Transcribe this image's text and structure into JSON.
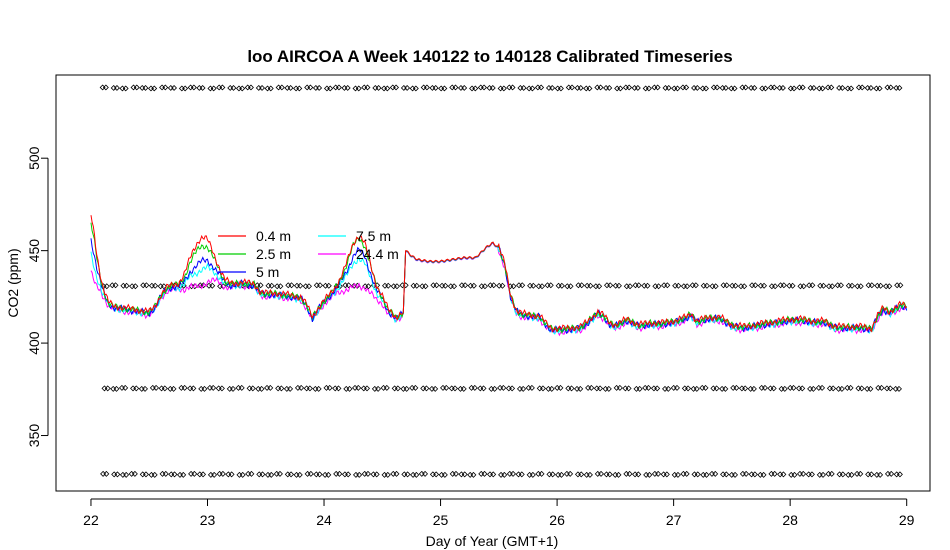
{
  "chart_data": {
    "type": "line",
    "title": "loo AIRCOA A  Week 140122 to 140128  Calibrated Timeseries",
    "xlabel": "Day of Year (GMT+1)",
    "ylabel": "CO2 (ppm)",
    "xlim": [
      21.7,
      29.2
    ],
    "ylim": [
      320,
      545
    ],
    "x_ticks": [
      22,
      23,
      24,
      25,
      26,
      27,
      28,
      29
    ],
    "y_ticks": [
      350,
      400,
      450,
      500
    ],
    "legend": {
      "placement": "center-left",
      "entries": [
        {
          "name": "0.4 m",
          "color": "#ff0000"
        },
        {
          "name": "2.5 m",
          "color": "#00cd00"
        },
        {
          "name": "5 m",
          "color": "#0000ff"
        },
        {
          "name": "7.5 m",
          "color": "#00ffff"
        },
        {
          "name": "24.4 m",
          "color": "#ff00ff"
        }
      ]
    },
    "base_profile": [
      [
        22.0,
        452
      ],
      [
        22.05,
        438
      ],
      [
        22.1,
        428
      ],
      [
        22.15,
        421
      ],
      [
        22.2,
        419
      ],
      [
        22.3,
        418
      ],
      [
        22.4,
        417
      ],
      [
        22.5,
        416
      ],
      [
        22.55,
        419
      ],
      [
        22.6,
        425
      ],
      [
        22.65,
        429
      ],
      [
        22.7,
        430
      ],
      [
        22.75,
        430
      ],
      [
        22.8,
        432
      ],
      [
        22.85,
        436
      ],
      [
        22.9,
        438
      ],
      [
        22.95,
        440
      ],
      [
        23.0,
        441
      ],
      [
        23.05,
        439
      ],
      [
        23.1,
        436
      ],
      [
        23.15,
        432
      ],
      [
        23.2,
        431
      ],
      [
        23.3,
        432
      ],
      [
        23.4,
        431
      ],
      [
        23.45,
        427
      ],
      [
        23.5,
        426
      ],
      [
        23.6,
        426
      ],
      [
        23.7,
        425
      ],
      [
        23.8,
        424
      ],
      [
        23.85,
        420
      ],
      [
        23.9,
        413
      ],
      [
        23.95,
        418
      ],
      [
        24.0,
        422
      ],
      [
        24.1,
        428
      ],
      [
        24.2,
        434
      ],
      [
        24.25,
        438
      ],
      [
        24.3,
        440
      ],
      [
        24.35,
        438
      ],
      [
        24.4,
        432
      ],
      [
        24.45,
        426
      ],
      [
        24.5,
        423
      ],
      [
        24.55,
        417
      ],
      [
        24.62,
        413
      ],
      [
        24.68,
        416
      ],
      [
        24.7,
        450
      ],
      [
        24.75,
        447
      ],
      [
        24.8,
        445
      ],
      [
        24.9,
        444
      ],
      [
        25.0,
        444
      ],
      [
        25.1,
        445
      ],
      [
        25.2,
        446
      ],
      [
        25.3,
        446
      ],
      [
        25.4,
        452
      ],
      [
        25.45,
        454
      ],
      [
        25.5,
        451
      ],
      [
        25.55,
        442
      ],
      [
        25.6,
        425
      ],
      [
        25.65,
        417
      ],
      [
        25.7,
        415
      ],
      [
        25.8,
        414
      ],
      [
        25.85,
        414
      ],
      [
        25.9,
        410
      ],
      [
        25.95,
        407
      ],
      [
        26.0,
        407
      ],
      [
        26.1,
        407
      ],
      [
        26.2,
        408
      ],
      [
        26.25,
        410
      ],
      [
        26.3,
        413
      ],
      [
        26.35,
        416
      ],
      [
        26.4,
        414
      ],
      [
        26.45,
        410
      ],
      [
        26.5,
        409
      ],
      [
        26.6,
        412
      ],
      [
        26.7,
        409
      ],
      [
        26.8,
        410
      ],
      [
        26.9,
        410
      ],
      [
        27.0,
        411
      ],
      [
        27.1,
        413
      ],
      [
        27.15,
        415
      ],
      [
        27.2,
        411
      ],
      [
        27.3,
        413
      ],
      [
        27.4,
        413
      ],
      [
        27.5,
        409
      ],
      [
        27.6,
        408
      ],
      [
        27.7,
        409
      ],
      [
        27.8,
        410
      ],
      [
        27.9,
        411
      ],
      [
        28.0,
        412
      ],
      [
        28.1,
        412
      ],
      [
        28.2,
        411
      ],
      [
        28.3,
        411
      ],
      [
        28.35,
        409
      ],
      [
        28.4,
        408
      ],
      [
        28.5,
        408
      ],
      [
        28.6,
        408
      ],
      [
        28.7,
        407
      ],
      [
        28.72,
        410
      ],
      [
        28.75,
        414
      ],
      [
        28.8,
        418
      ],
      [
        28.85,
        416
      ],
      [
        28.9,
        418
      ],
      [
        28.95,
        420
      ],
      [
        29.0,
        419
      ]
    ],
    "series": [
      {
        "name": "0.4 m",
        "color": "#ff0000",
        "peaks": [
          [
            22.0,
            468
          ],
          [
            22.95,
            456
          ],
          [
            24.3,
            457
          ],
          [
            25.45,
            455
          ]
        ],
        "offset": 1.0
      },
      {
        "name": "2.5 m",
        "color": "#00cd00",
        "peaks": [
          [
            22.0,
            464
          ],
          [
            22.95,
            452
          ],
          [
            24.3,
            456
          ],
          [
            25.45,
            455
          ]
        ],
        "offset": 0.6
      },
      {
        "name": "5 m",
        "color": "#0000ff",
        "peaks": [
          [
            22.0,
            456
          ],
          [
            22.95,
            444
          ],
          [
            24.3,
            450
          ],
          [
            25.45,
            454
          ]
        ],
        "offset": 0.2
      },
      {
        "name": "7.5 m",
        "color": "#00ffff",
        "peaks": [
          [
            22.0,
            448
          ],
          [
            22.95,
            440
          ],
          [
            24.3,
            446
          ],
          [
            25.45,
            454
          ]
        ],
        "offset": -0.2
      },
      {
        "name": "24.4 m",
        "color": "#ff00ff",
        "peaks": [
          [
            22.0,
            440
          ],
          [
            22.95,
            432
          ],
          [
            24.3,
            432
          ],
          [
            25.45,
            454
          ]
        ],
        "offset": -0.8
      }
    ],
    "reference_markers": {
      "y_levels": [
        538,
        431,
        375.5,
        329
      ],
      "x_start": 22.1,
      "x_end": 28.98,
      "spacing": 0.083
    }
  }
}
